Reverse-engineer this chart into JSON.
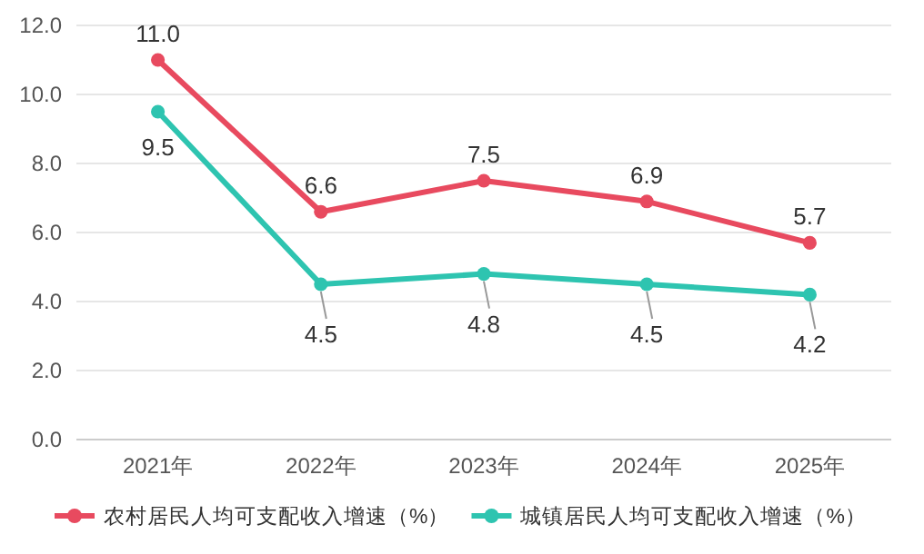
{
  "chart_data": {
    "type": "line",
    "categories": [
      "2021年",
      "2022年",
      "2023年",
      "2024年",
      "2025年"
    ],
    "series": [
      {
        "name": "农村居民人均可支配收入增速（%）",
        "color": "#e84a5f",
        "values": [
          11.0,
          6.6,
          7.5,
          6.9,
          5.7
        ],
        "value_labels": [
          "11.0",
          "6.6",
          "7.5",
          "6.9",
          "5.7"
        ]
      },
      {
        "name": "城镇居民人均可支配收入增速（%）",
        "color": "#2ec4b0",
        "values": [
          9.5,
          4.5,
          4.8,
          4.5,
          4.2
        ],
        "value_labels": [
          "9.5",
          "4.5",
          "4.8",
          "4.5",
          "4.2"
        ]
      }
    ],
    "ylim": [
      0,
      12
    ],
    "yticks": [
      {
        "value": 0,
        "label": "0.0"
      },
      {
        "value": 2,
        "label": "2.0"
      },
      {
        "value": 4,
        "label": "4.0"
      },
      {
        "value": 6,
        "label": "6.0"
      },
      {
        "value": 8,
        "label": "8.0"
      },
      {
        "value": 10,
        "label": "10.0"
      },
      {
        "value": 12,
        "label": "12.0"
      }
    ],
    "grid": "y",
    "legend": "bottom",
    "marker": "circle",
    "line_style": "solid"
  }
}
